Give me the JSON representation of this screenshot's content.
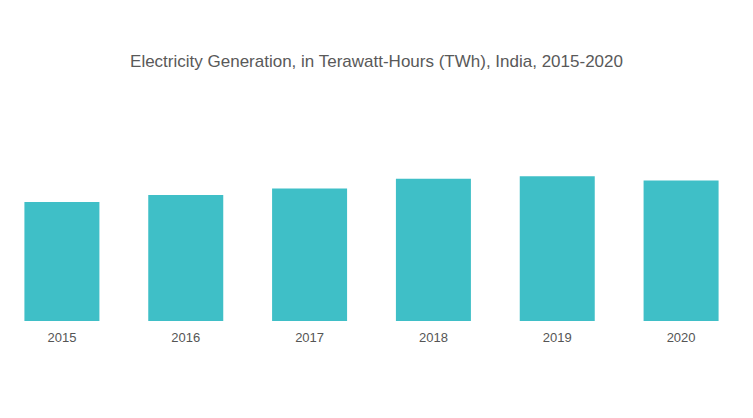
{
  "chart_data": {
    "type": "bar",
    "title": "Electricity Generation, in Terawatt-Hours (TWh), India, 2015-2020",
    "categories": [
      "2015",
      "2016",
      "2017",
      "2018",
      "2019",
      "2020"
    ],
    "values": [
      1322,
      1401,
      1471,
      1580,
      1608,
      1560
    ],
    "color": "#3fbfc7",
    "ylim": [
      0,
      2000
    ],
    "yticks": [
      0,
      500,
      1000,
      1500,
      2000
    ],
    "grid": false,
    "tick_labels": "x"
  }
}
